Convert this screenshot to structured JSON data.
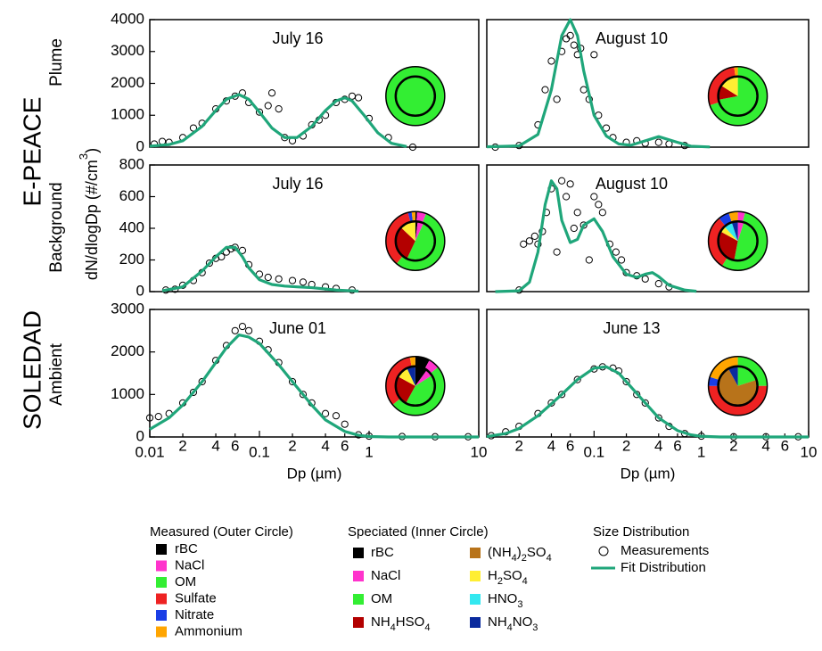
{
  "chart_data": [
    {
      "type": "line",
      "title": "July 16",
      "xscale": "log",
      "xlim": [
        0.01,
        10
      ],
      "ylim": [
        0,
        4000
      ],
      "yticks": [
        0,
        1000,
        2000,
        3000,
        4000
      ],
      "series": [
        {
          "type": "scatter",
          "color": "#000000",
          "x": [
            0.011,
            0.013,
            0.015,
            0.02,
            0.025,
            0.03,
            0.04,
            0.05,
            0.06,
            0.07,
            0.08,
            0.1,
            0.12,
            0.13,
            0.15,
            0.17,
            0.2,
            0.25,
            0.3,
            0.35,
            0.4,
            0.5,
            0.6,
            0.7,
            0.8,
            1.0,
            1.5,
            2.5
          ],
          "values": [
            100,
            180,
            150,
            300,
            600,
            750,
            1200,
            1450,
            1600,
            1700,
            1400,
            1100,
            1300,
            1700,
            1200,
            300,
            200,
            350,
            700,
            850,
            1000,
            1400,
            1500,
            1600,
            1550,
            900,
            300,
            0
          ]
        },
        {
          "type": "line",
          "color": "#1fa67a",
          "x": [
            0.01,
            0.015,
            0.02,
            0.03,
            0.04,
            0.05,
            0.065,
            0.08,
            0.1,
            0.13,
            0.17,
            0.22,
            0.3,
            0.4,
            0.5,
            0.6,
            0.7,
            0.9,
            1.2,
            1.6,
            2.2
          ],
          "values": [
            30,
            80,
            200,
            650,
            1150,
            1500,
            1650,
            1500,
            1100,
            600,
            300,
            300,
            650,
            1150,
            1450,
            1550,
            1450,
            1000,
            450,
            120,
            20
          ]
        }
      ],
      "pie": {
        "outer": [
          0,
          0,
          100,
          0,
          0,
          0
        ],
        "inner": [
          0,
          0,
          100,
          0,
          0,
          0,
          0,
          0
        ]
      }
    },
    {
      "type": "line",
      "title": "August 10",
      "xscale": "log",
      "xlim": [
        0.01,
        10
      ],
      "ylim": [
        0,
        4000
      ],
      "series": [
        {
          "type": "scatter",
          "color": "#000000",
          "x": [
            0.012,
            0.02,
            0.03,
            0.035,
            0.04,
            0.045,
            0.05,
            0.055,
            0.06,
            0.065,
            0.07,
            0.075,
            0.08,
            0.09,
            0.1,
            0.11,
            0.13,
            0.15,
            0.2,
            0.25,
            0.3,
            0.4,
            0.5,
            0.7
          ],
          "values": [
            0,
            50,
            700,
            1800,
            2700,
            1500,
            3000,
            3400,
            3500,
            3200,
            2900,
            3100,
            1800,
            1500,
            2900,
            1000,
            600,
            300,
            150,
            200,
            120,
            150,
            100,
            50
          ]
        },
        {
          "type": "line",
          "color": "#1fa67a",
          "x": [
            0.01,
            0.02,
            0.03,
            0.04,
            0.05,
            0.06,
            0.07,
            0.08,
            0.1,
            0.13,
            0.17,
            0.22,
            0.3,
            0.4,
            0.6,
            0.8,
            1.2
          ],
          "values": [
            10,
            40,
            400,
            1800,
            3500,
            4000,
            3500,
            2400,
            1000,
            350,
            100,
            60,
            200,
            330,
            150,
            30,
            5
          ]
        }
      ],
      "pie": {
        "outer": [
          0,
          0,
          70,
          28,
          0,
          2
        ],
        "inner": [
          0,
          0,
          72,
          12,
          0,
          16,
          0,
          0
        ]
      }
    },
    {
      "type": "line",
      "title": "July 16",
      "xscale": "log",
      "xlim": [
        0.01,
        10
      ],
      "ylim": [
        0,
        800
      ],
      "yticks": [
        0,
        200,
        400,
        600,
        800
      ],
      "series": [
        {
          "type": "scatter",
          "color": "#000000",
          "x": [
            0.014,
            0.017,
            0.02,
            0.025,
            0.03,
            0.035,
            0.04,
            0.045,
            0.05,
            0.055,
            0.06,
            0.07,
            0.08,
            0.1,
            0.12,
            0.15,
            0.2,
            0.25,
            0.3,
            0.4,
            0.5,
            0.7
          ],
          "values": [
            10,
            15,
            40,
            70,
            120,
            180,
            210,
            220,
            250,
            270,
            280,
            260,
            170,
            110,
            90,
            80,
            70,
            60,
            45,
            30,
            20,
            10
          ]
        },
        {
          "type": "line",
          "color": "#1fa67a",
          "x": [
            0.013,
            0.02,
            0.03,
            0.04,
            0.05,
            0.06,
            0.07,
            0.08,
            0.1,
            0.13,
            0.17,
            0.22,
            0.3,
            0.5,
            0.8
          ],
          "values": [
            5,
            30,
            130,
            220,
            280,
            280,
            220,
            150,
            75,
            45,
            35,
            30,
            25,
            10,
            3
          ]
        }
      ],
      "pie": {
        "outer": [
          1,
          5,
          55,
          35,
          2,
          2
        ],
        "inner": [
          2,
          5,
          50,
          30,
          0,
          13,
          0,
          0
        ]
      }
    },
    {
      "type": "line",
      "title": "August 10",
      "xscale": "log",
      "xlim": [
        0.01,
        10
      ],
      "ylim": [
        0,
        800
      ],
      "series": [
        {
          "type": "scatter",
          "color": "#000000",
          "x": [
            0.02,
            0.022,
            0.025,
            0.028,
            0.03,
            0.033,
            0.036,
            0.04,
            0.045,
            0.05,
            0.055,
            0.06,
            0.065,
            0.07,
            0.08,
            0.09,
            0.1,
            0.11,
            0.12,
            0.14,
            0.16,
            0.18,
            0.2,
            0.25,
            0.3,
            0.4,
            0.5
          ],
          "values": [
            10,
            300,
            320,
            350,
            300,
            380,
            500,
            650,
            250,
            700,
            600,
            680,
            400,
            500,
            420,
            200,
            600,
            550,
            500,
            300,
            250,
            200,
            120,
            100,
            80,
            50,
            30
          ]
        },
        {
          "type": "line",
          "color": "#1fa67a",
          "x": [
            0.012,
            0.02,
            0.025,
            0.03,
            0.035,
            0.04,
            0.045,
            0.05,
            0.06,
            0.07,
            0.08,
            0.1,
            0.12,
            0.15,
            0.2,
            0.25,
            0.3,
            0.35,
            0.4,
            0.5,
            0.7,
            0.9
          ],
          "values": [
            0,
            5,
            60,
            250,
            550,
            700,
            650,
            450,
            310,
            330,
            420,
            460,
            380,
            220,
            110,
            90,
            110,
            120,
            95,
            40,
            10,
            2
          ]
        }
      ],
      "pie": {
        "outer": [
          0,
          4,
          55,
          30,
          6,
          5
        ],
        "inner": [
          0,
          5,
          48,
          30,
          0,
          5,
          7,
          5
        ]
      }
    },
    {
      "type": "line",
      "title": "June 01",
      "xscale": "log",
      "xlim": [
        0.01,
        10
      ],
      "ylim": [
        0,
        3000
      ],
      "yticks": [
        0,
        1000,
        2000,
        3000
      ],
      "xticks": [
        0.01,
        {
          "value": 0.02,
          "label": "2"
        },
        {
          "value": 0.04,
          "label": "4"
        },
        {
          "value": 0.06,
          "label": "6"
        },
        0.1,
        {
          "value": 0.2,
          "label": "2"
        },
        {
          "value": 0.4,
          "label": "4"
        },
        {
          "value": 0.6,
          "label": "6"
        },
        1,
        10
      ],
      "xlabel": "Dp (µm)",
      "series": [
        {
          "type": "scatter",
          "color": "#000000",
          "x": [
            0.01,
            0.012,
            0.015,
            0.02,
            0.025,
            0.03,
            0.04,
            0.05,
            0.06,
            0.07,
            0.08,
            0.1,
            0.12,
            0.15,
            0.2,
            0.25,
            0.3,
            0.4,
            0.5,
            0.6,
            0.8,
            1,
            2,
            4,
            8
          ],
          "values": [
            450,
            480,
            550,
            800,
            1050,
            1300,
            1800,
            2150,
            2500,
            2600,
            2500,
            2250,
            2050,
            1750,
            1300,
            1000,
            800,
            550,
            500,
            300,
            50,
            20,
            10,
            5,
            5
          ]
        },
        {
          "type": "line",
          "color": "#1fa67a",
          "x": [
            0.01,
            0.015,
            0.02,
            0.03,
            0.04,
            0.05,
            0.065,
            0.08,
            0.1,
            0.15,
            0.2,
            0.3,
            0.4,
            0.6,
            0.8,
            1,
            1.5,
            2,
            3,
            5,
            10
          ],
          "values": [
            180,
            450,
            750,
            1300,
            1750,
            2100,
            2400,
            2350,
            2200,
            1700,
            1300,
            750,
            400,
            130,
            40,
            10,
            0,
            0,
            0,
            0,
            0
          ]
        }
      ],
      "pie": {
        "outer": [
          8,
          6,
          50,
          33,
          0,
          3
        ],
        "inner": [
          10,
          6,
          42,
          25,
          0,
          10,
          0,
          7
        ]
      }
    },
    {
      "type": "line",
      "title": "June 13",
      "xscale": "log",
      "xlim": [
        0.01,
        10
      ],
      "ylim": [
        0,
        3000
      ],
      "xticks": [
        {
          "value": 0.02,
          "label": "2"
        },
        {
          "value": 0.04,
          "label": "4"
        },
        {
          "value": 0.06,
          "label": "6"
        },
        0.1,
        {
          "value": 0.2,
          "label": "2"
        },
        {
          "value": 0.4,
          "label": "4"
        },
        {
          "value": 0.6,
          "label": "6"
        },
        1,
        2,
        4,
        6,
        10
      ],
      "xlabel": "Dp (µm)",
      "series": [
        {
          "type": "scatter",
          "color": "#000000",
          "x": [
            0.011,
            0.015,
            0.02,
            0.03,
            0.04,
            0.05,
            0.07,
            0.1,
            0.12,
            0.15,
            0.17,
            0.2,
            0.25,
            0.3,
            0.4,
            0.5,
            0.7,
            1,
            2,
            4,
            8
          ],
          "values": [
            30,
            120,
            250,
            550,
            800,
            1000,
            1350,
            1600,
            1650,
            1620,
            1550,
            1300,
            1000,
            800,
            450,
            250,
            80,
            20,
            5,
            5,
            5
          ]
        },
        {
          "type": "line",
          "color": "#1fa67a",
          "x": [
            0.01,
            0.015,
            0.02,
            0.03,
            0.04,
            0.05,
            0.07,
            0.1,
            0.13,
            0.17,
            0.2,
            0.3,
            0.4,
            0.6,
            0.8,
            1,
            1.5,
            2,
            3,
            5,
            10
          ],
          "values": [
            10,
            80,
            200,
            500,
            780,
            1000,
            1350,
            1620,
            1650,
            1500,
            1300,
            800,
            450,
            150,
            50,
            15,
            0,
            0,
            0,
            0,
            0
          ]
        }
      ],
      "pie": {
        "outer": [
          0,
          0,
          25,
          50,
          5,
          20
        ],
        "inner": [
          0,
          0,
          20,
          0,
          72,
          0,
          0,
          8
        ]
      }
    }
  ],
  "figure": {
    "labels": {
      "epeace": "E-PEACE",
      "plume": "Plume",
      "background": "Background",
      "soledad": "SOLEDAD",
      "ambient": "Ambient"
    },
    "ylabel": [
      "dN/dlogDp (#/cm",
      "3",
      ")"
    ],
    "legend": {
      "measured": {
        "title": "Measured (Outer Circle)",
        "items": [
          {
            "label": [
              "rBC"
            ],
            "color": "#000000"
          },
          {
            "label": [
              "NaCl"
            ],
            "color": "#ff33cc"
          },
          {
            "label": [
              "OM"
            ],
            "color": "#33ee33"
          },
          {
            "label": [
              "Sulfate"
            ],
            "color": "#ee2222"
          },
          {
            "label": [
              "Nitrate"
            ],
            "color": "#1a3ee6"
          },
          {
            "label": [
              "Ammonium"
            ],
            "color": "#ffa500"
          }
        ]
      },
      "speciated": {
        "title": "Speciated (Inner Circle)",
        "items": [
          {
            "label": [
              "rBC"
            ],
            "color": "#000000"
          },
          {
            "label": [
              "NaCl"
            ],
            "color": "#ff33cc"
          },
          {
            "label": [
              "OM"
            ],
            "color": "#33ee33"
          },
          {
            "label": [
              "NH",
              "4",
              "HSO",
              "4"
            ],
            "color": "#b30000"
          },
          {
            "label": [
              "(NH",
              "4",
              ")",
              "2",
              "SO",
              "4"
            ],
            "color": "#b8731a"
          },
          {
            "label": [
              "H",
              "2",
              "SO",
              "4"
            ],
            "color": "#ffee33"
          },
          {
            "label": [
              "HNO",
              "3"
            ],
            "color": "#33e8f0"
          },
          {
            "label": [
              "NH",
              "4",
              "NO",
              "3"
            ],
            "color": "#0a2a9e"
          }
        ]
      },
      "size": {
        "title": "Size Distribution",
        "items": [
          {
            "label": "Measurements",
            "marker": "circle"
          },
          {
            "label": "Fit Distribution",
            "color": "#1fa67a"
          }
        ]
      }
    }
  }
}
